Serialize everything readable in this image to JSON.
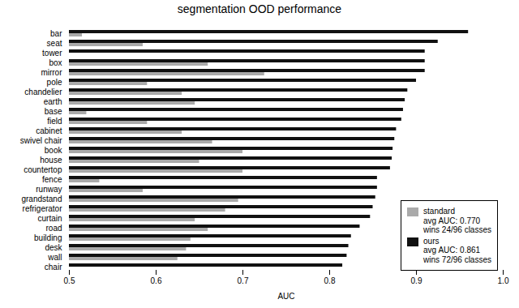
{
  "chart_data": {
    "type": "bar",
    "orientation": "horizontal",
    "title": "segmentation OOD performance",
    "xlabel": "AUC",
    "xlim": [
      0.5,
      1.0
    ],
    "xticks": [
      0.5,
      0.6,
      0.7,
      0.8,
      0.9,
      {
        "value": 1.0,
        "label": "1.0"
      }
    ],
    "categories": [
      "bar",
      "seat",
      "tower",
      "box",
      "mirror",
      "pole",
      "chandelier",
      "earth",
      "base",
      "field",
      "cabinet",
      "swivel chair",
      "book",
      "house",
      "countertop",
      "fence",
      "runway",
      "grandstand",
      "refrigerator",
      "curtain",
      "road",
      "building",
      "desk",
      "wall",
      "chair"
    ],
    "series": [
      {
        "name": "standard\navg AUC: 0.770\nwins 24/96 classes",
        "color": "#aaaaaa",
        "values": [
          0.515,
          0.585,
          0.5,
          0.66,
          0.725,
          0.59,
          0.63,
          0.645,
          0.52,
          0.59,
          0.63,
          0.665,
          0.7,
          0.65,
          0.7,
          0.535,
          0.585,
          0.695,
          0.68,
          0.645,
          0.66,
          0.64,
          0.635,
          0.625,
          0.5
        ]
      },
      {
        "name": "ours\navg AUC: 0.861\nwins 72/96 classes",
        "color": "#111111",
        "values": [
          0.96,
          0.925,
          0.91,
          0.91,
          0.91,
          0.9,
          0.89,
          0.887,
          0.885,
          0.883,
          0.877,
          0.875,
          0.873,
          0.872,
          0.87,
          0.855,
          0.855,
          0.853,
          0.85,
          0.847,
          0.835,
          0.825,
          0.822,
          0.82,
          0.815
        ]
      }
    ],
    "legend": "lower right",
    "grid": false
  }
}
